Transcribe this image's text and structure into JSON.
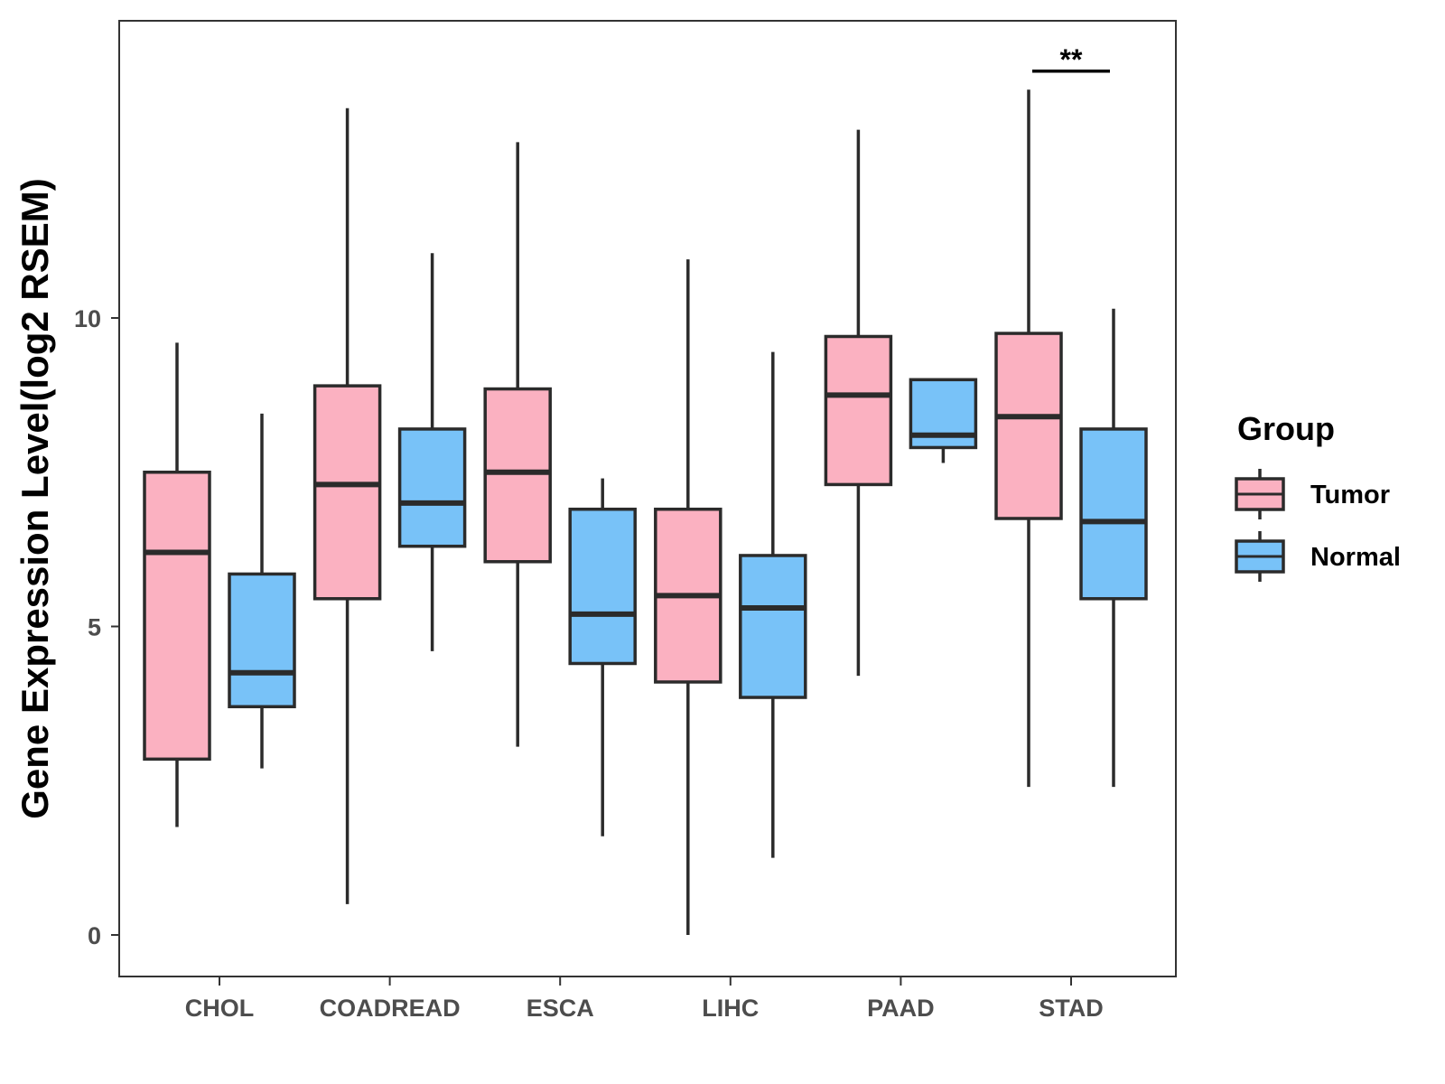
{
  "chart_data": {
    "type": "boxplot",
    "title": "",
    "xlabel": "",
    "ylabel": "Gene Expression Level(log2 RSEM)",
    "ylim": [
      -0.7,
      14.8
    ],
    "yticks": [
      0,
      5,
      10
    ],
    "grid": false,
    "legend": {
      "title": "Group",
      "position": "right",
      "entries": [
        {
          "name": "Tumor",
          "color": "#fbb1c1"
        },
        {
          "name": "Normal",
          "color": "#78c2f8"
        }
      ]
    },
    "categories": [
      "CHOL",
      "COADREAD",
      "ESCA",
      "LIHC",
      "PAAD",
      "STAD"
    ],
    "series": [
      {
        "name": "Tumor",
        "color": "#fbb1c1",
        "boxes": [
          {
            "min": 1.75,
            "q1": 2.85,
            "median": 6.2,
            "q3": 7.5,
            "max": 9.6
          },
          {
            "min": 0.5,
            "q1": 5.45,
            "median": 7.3,
            "q3": 8.9,
            "max": 13.4
          },
          {
            "min": 3.05,
            "q1": 6.05,
            "median": 7.5,
            "q3": 8.85,
            "max": 12.85
          },
          {
            "min": 0.0,
            "q1": 4.1,
            "median": 5.5,
            "q3": 6.9,
            "max": 10.95
          },
          {
            "min": 4.2,
            "q1": 7.3,
            "median": 8.75,
            "q3": 9.7,
            "max": 13.05
          },
          {
            "min": 2.4,
            "q1": 6.75,
            "median": 8.4,
            "q3": 9.75,
            "max": 13.7
          }
        ]
      },
      {
        "name": "Normal",
        "color": "#78c2f8",
        "boxes": [
          {
            "min": 2.7,
            "q1": 3.7,
            "median": 4.25,
            "q3": 5.85,
            "max": 8.45
          },
          {
            "min": 4.6,
            "q1": 6.3,
            "median": 7.0,
            "q3": 8.2,
            "max": 11.05
          },
          {
            "min": 1.6,
            "q1": 4.4,
            "median": 5.2,
            "q3": 6.9,
            "max": 7.4
          },
          {
            "min": 1.25,
            "q1": 3.85,
            "median": 5.3,
            "q3": 6.15,
            "max": 9.45
          },
          {
            "min": 7.65,
            "q1": 7.9,
            "median": 8.1,
            "q3": 9.0,
            "max": 9.0
          },
          {
            "min": 2.4,
            "q1": 5.45,
            "median": 6.7,
            "q3": 8.2,
            "max": 10.15
          }
        ]
      }
    ],
    "annotations": [
      {
        "category": "STAD",
        "text": "**",
        "bracket_y": 14.0
      }
    ]
  }
}
